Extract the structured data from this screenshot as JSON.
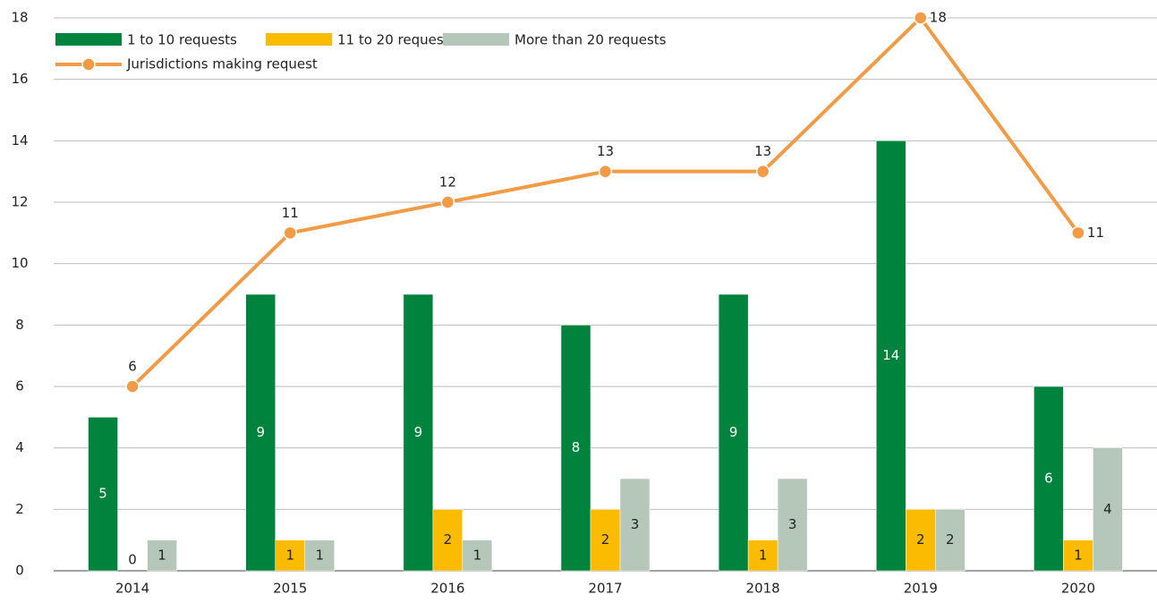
{
  "chart_data": {
    "type": "bar_line",
    "categories": [
      "2014",
      "2015",
      "2016",
      "2017",
      "2018",
      "2019",
      "2020"
    ],
    "series": [
      {
        "name": "1 to 10 requests",
        "color": "#00843d",
        "values": [
          5,
          9,
          9,
          8,
          9,
          14,
          6
        ]
      },
      {
        "name": "11 to 20 requests",
        "color": "#fbbb00",
        "values": [
          0,
          1,
          2,
          2,
          1,
          2,
          1
        ]
      },
      {
        "name": "More than 20 requests",
        "color": "#b5c7b9",
        "values": [
          1,
          1,
          1,
          3,
          3,
          2,
          4
        ]
      },
      {
        "name": "Jurisdictions making request",
        "color": "#f39a44",
        "type": "line",
        "values": [
          6,
          11,
          12,
          13,
          13,
          18,
          11
        ]
      }
    ],
    "ylim": [
      0,
      18
    ],
    "yticks": [
      0,
      2,
      4,
      6,
      8,
      10,
      12,
      14,
      16,
      18
    ],
    "grid": true
  }
}
